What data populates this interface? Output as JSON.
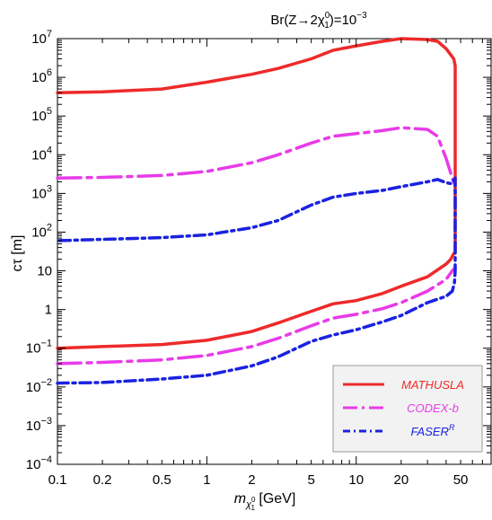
{
  "chart_data": {
    "type": "line",
    "title": {
      "base": "Br(Z→2",
      "chi": "χ",
      "chi_sup": "0",
      "chi_sub": "1",
      "rest": ")=10",
      "exp": "−3"
    },
    "xlabel": {
      "m": "m",
      "chi": "χ",
      "chi_sup": "0",
      "chi_sub": "1",
      "unit": " [GeV]"
    },
    "ylabel": {
      "ct": "cτ",
      "unit": " [m]"
    },
    "x_scale": "log",
    "y_scale": "log",
    "xlim": [
      0.1,
      80
    ],
    "ylim": [
      0.0001,
      10000000
    ],
    "x_ticks": [
      {
        "value": 0.1,
        "label": "0.1"
      },
      {
        "value": 0.2,
        "label": "0.2"
      },
      {
        "value": 0.5,
        "label": "0.5"
      },
      {
        "value": 1,
        "label": "1"
      },
      {
        "value": 2,
        "label": "2"
      },
      {
        "value": 5,
        "label": "5"
      },
      {
        "value": 10,
        "label": "10"
      },
      {
        "value": 20,
        "label": "20"
      },
      {
        "value": 50,
        "label": "50"
      }
    ],
    "y_ticks": [
      {
        "value": 0.0001,
        "base": "10",
        "exp": "−4"
      },
      {
        "value": 0.001,
        "base": "10",
        "exp": "−3"
      },
      {
        "value": 0.01,
        "base": "10",
        "exp": "−2"
      },
      {
        "value": 0.1,
        "base": "10",
        "exp": "−1"
      },
      {
        "value": 1,
        "base": "1",
        "exp": ""
      },
      {
        "value": 10,
        "base": "10",
        "exp": ""
      },
      {
        "value": 100,
        "base": "10",
        "exp": "2"
      },
      {
        "value": 1000,
        "base": "10",
        "exp": "3"
      },
      {
        "value": 10000,
        "base": "10",
        "exp": "4"
      },
      {
        "value": 100000,
        "base": "10",
        "exp": "5"
      },
      {
        "value": 1000000,
        "base": "10",
        "exp": "6"
      },
      {
        "value": 10000000,
        "base": "10",
        "exp": "7"
      }
    ],
    "legend": {
      "position": "bottom-right",
      "background": "#f2f2f2"
    },
    "series": [
      {
        "name": "MATHUSLA",
        "sup": "",
        "color": "#ee2a2a",
        "dash": "solid",
        "points": [
          [
            0.1,
            0.1
          ],
          [
            0.2,
            0.11
          ],
          [
            0.5,
            0.125
          ],
          [
            1,
            0.16
          ],
          [
            2,
            0.27
          ],
          [
            3,
            0.45
          ],
          [
            5,
            0.9
          ],
          [
            7,
            1.4
          ],
          [
            10,
            1.7
          ],
          [
            15,
            2.6
          ],
          [
            20,
            4
          ],
          [
            30,
            7
          ],
          [
            40,
            15
          ],
          [
            43,
            20
          ],
          [
            45,
            28
          ],
          [
            46,
            30
          ],
          [
            46,
            2000000
          ],
          [
            45,
            3000000
          ],
          [
            43,
            3800000
          ],
          [
            40,
            5500000
          ],
          [
            35,
            8500000
          ],
          [
            30,
            9500000
          ],
          [
            20,
            10000000
          ],
          [
            15,
            8500000
          ],
          [
            10,
            6500000
          ],
          [
            7,
            5000000
          ],
          [
            5,
            3000000
          ],
          [
            3,
            1700000
          ],
          [
            2,
            1200000
          ],
          [
            1,
            750000
          ],
          [
            0.5,
            500000
          ],
          [
            0.2,
            420000
          ],
          [
            0.1,
            400000
          ]
        ]
      },
      {
        "name": "CODEX-b",
        "sup": "",
        "color": "#e83be8",
        "dash": "longdash",
        "points": [
          [
            0.1,
            0.04
          ],
          [
            0.2,
            0.043
          ],
          [
            0.5,
            0.05
          ],
          [
            1,
            0.065
          ],
          [
            2,
            0.11
          ],
          [
            3,
            0.18
          ],
          [
            5,
            0.38
          ],
          [
            7,
            0.6
          ],
          [
            10,
            0.75
          ],
          [
            15,
            1.05
          ],
          [
            20,
            1.5
          ],
          [
            30,
            3
          ],
          [
            40,
            6
          ],
          [
            44,
            10
          ],
          [
            46,
            12
          ]
        ]
      },
      {
        "name": "CODEX-b",
        "sup": "",
        "color": "#e83be8",
        "dash": "longdash",
        "points": [
          [
            0.1,
            2500
          ],
          [
            0.2,
            2600
          ],
          [
            0.5,
            2900
          ],
          [
            1,
            3700
          ],
          [
            2,
            6200
          ],
          [
            3,
            10000
          ],
          [
            5,
            20000
          ],
          [
            7,
            30000
          ],
          [
            10,
            35000
          ],
          [
            15,
            42000
          ],
          [
            20,
            50000
          ],
          [
            30,
            45000
          ],
          [
            35,
            30000
          ],
          [
            40,
            8000
          ],
          [
            44,
            2500
          ],
          [
            46,
            1500
          ]
        ]
      },
      {
        "name": "FASER",
        "sup": "R",
        "color": "#1a22e0",
        "dash": "dashdot",
        "points": [
          [
            0.1,
            0.0125
          ],
          [
            0.2,
            0.013
          ],
          [
            0.5,
            0.016
          ],
          [
            1,
            0.02
          ],
          [
            2,
            0.035
          ],
          [
            3,
            0.06
          ],
          [
            5,
            0.15
          ],
          [
            7,
            0.22
          ],
          [
            10,
            0.3
          ],
          [
            15,
            0.48
          ],
          [
            20,
            0.7
          ],
          [
            30,
            1.5
          ],
          [
            40,
            2.2
          ],
          [
            44,
            3
          ],
          [
            45.5,
            5
          ],
          [
            46,
            10
          ],
          [
            46,
            2500
          ],
          [
            45,
            2200
          ],
          [
            43,
            1800
          ],
          [
            40,
            1900
          ],
          [
            35,
            2300
          ],
          [
            30,
            2000
          ],
          [
            20,
            1500
          ],
          [
            15,
            1200
          ],
          [
            10,
            1000
          ],
          [
            7,
            800
          ],
          [
            5,
            500
          ],
          [
            3,
            200
          ],
          [
            2,
            130
          ],
          [
            1,
            85
          ],
          [
            0.5,
            72
          ],
          [
            0.2,
            65
          ],
          [
            0.1,
            60
          ]
        ]
      }
    ]
  }
}
